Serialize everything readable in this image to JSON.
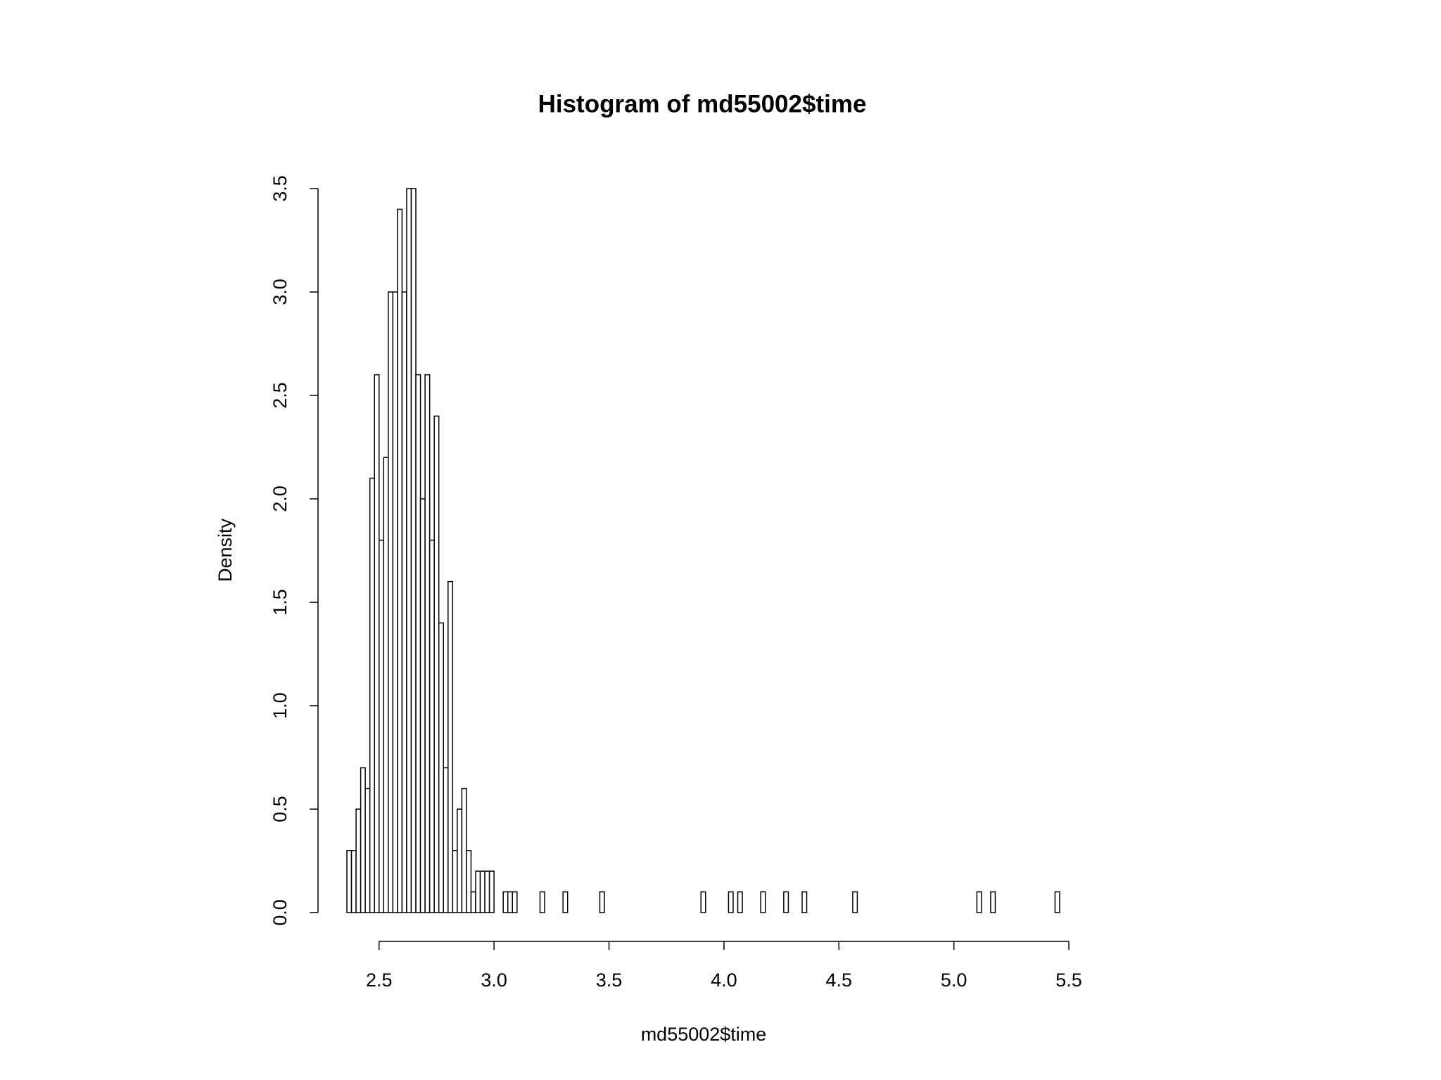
{
  "chart_data": {
    "type": "histogram",
    "title": "Histogram of md55002$time",
    "xlabel": "md55002$time",
    "ylabel": "Density",
    "bins": [
      2.36,
      2.38,
      2.4,
      2.42,
      2.44,
      2.46,
      2.48,
      2.5,
      2.52,
      2.54,
      2.56,
      2.58,
      2.6,
      2.62,
      2.64,
      2.66,
      2.68,
      2.7,
      2.72,
      2.74,
      2.76,
      2.78,
      2.8,
      2.82,
      2.84,
      2.86,
      2.88,
      2.9,
      2.92,
      2.94,
      2.96,
      2.98,
      3.0,
      3.02,
      3.04,
      3.06,
      3.08,
      3.1,
      3.12,
      3.14,
      3.16,
      3.18,
      3.2,
      3.22,
      3.24,
      3.26,
      3.28,
      3.3,
      3.32,
      3.34,
      3.36,
      3.38,
      3.4,
      3.42,
      3.44,
      3.46,
      3.48,
      3.5,
      3.52,
      3.54,
      3.56,
      3.58,
      3.6,
      3.62,
      3.64,
      3.66,
      3.68,
      3.7,
      3.72,
      3.74,
      3.76,
      3.78,
      3.8,
      3.82,
      3.84,
      3.86,
      3.88,
      3.9,
      3.92,
      3.94,
      3.96,
      3.98,
      4.0,
      4.02,
      4.04,
      4.06,
      4.08,
      4.1,
      4.12,
      4.14,
      4.16,
      4.18,
      4.2,
      4.22,
      4.24,
      4.26,
      4.28,
      4.3,
      4.32,
      4.34,
      4.36,
      4.38,
      4.4,
      4.42,
      4.44,
      4.46,
      4.48,
      4.5,
      4.52,
      4.54,
      4.56,
      4.58,
      4.6,
      4.62,
      4.64,
      4.66,
      4.68,
      4.7,
      4.72,
      4.74,
      4.76,
      4.78,
      4.8,
      4.82,
      4.84,
      4.86,
      4.88,
      4.9,
      4.92,
      4.94,
      4.96,
      4.98,
      5.0,
      5.02,
      5.04,
      5.06,
      5.08,
      5.1,
      5.12,
      5.14,
      5.16,
      5.18,
      5.2,
      5.22,
      5.24,
      5.26,
      5.28,
      5.3,
      5.32,
      5.34,
      5.36,
      5.38,
      5.4,
      5.42,
      5.44,
      5.46
    ],
    "values": [
      0.3,
      0.3,
      0.5,
      0.7,
      0.6,
      2.1,
      2.6,
      1.8,
      2.2,
      3.0,
      3.0,
      3.4,
      3.0,
      3.5,
      3.5,
      2.6,
      2.0,
      2.6,
      1.8,
      2.4,
      1.4,
      0.7,
      1.6,
      0.3,
      0.5,
      0.6,
      0.3,
      0.1,
      0.2,
      0.2,
      0.2,
      0.2,
      0,
      0,
      0.1,
      0.1,
      0.1,
      0,
      0,
      0,
      0,
      0,
      0.1,
      0,
      0,
      0,
      0,
      0.1,
      0,
      0,
      0,
      0,
      0,
      0,
      0,
      0.1,
      0,
      0,
      0,
      0,
      0,
      0,
      0,
      0,
      0,
      0,
      0,
      0,
      0,
      0,
      0,
      0,
      0,
      0,
      0,
      0,
      0,
      0.1,
      0,
      0,
      0,
      0,
      0,
      0.1,
      0,
      0.1,
      0,
      0,
      0,
      0,
      0.1,
      0,
      0,
      0,
      0,
      0.1,
      0,
      0,
      0,
      0.1,
      0,
      0,
      0,
      0,
      0,
      0,
      0,
      0,
      0,
      0,
      0.1,
      0,
      0,
      0,
      0,
      0,
      0,
      0,
      0,
      0,
      0,
      0,
      0,
      0,
      0,
      0,
      0,
      0,
      0,
      0,
      0,
      0,
      0,
      0,
      0,
      0,
      0,
      0.1,
      0,
      0,
      0.1,
      0,
      0,
      0,
      0,
      0,
      0,
      0,
      0,
      0,
      0,
      0,
      0,
      0,
      0.1
    ],
    "color": "#ffffff",
    "xlim": [
      2.36,
      5.46
    ],
    "ylim": [
      0,
      3.5
    ],
    "xticks": [
      2.5,
      {
        "value": 3,
        "label": "3.0"
      },
      3.5,
      {
        "value": 4,
        "label": "4.0"
      },
      4.5,
      {
        "value": 5,
        "label": "5.0"
      },
      5.5
    ],
    "yticks": [
      {
        "value": 0,
        "label": "0.0"
      },
      0.5,
      {
        "value": 1,
        "label": "1.0"
      },
      1.5,
      {
        "value": 2,
        "label": "2.0"
      },
      2.5,
      {
        "value": 3,
        "label": "3.0"
      },
      3.5
    ]
  }
}
